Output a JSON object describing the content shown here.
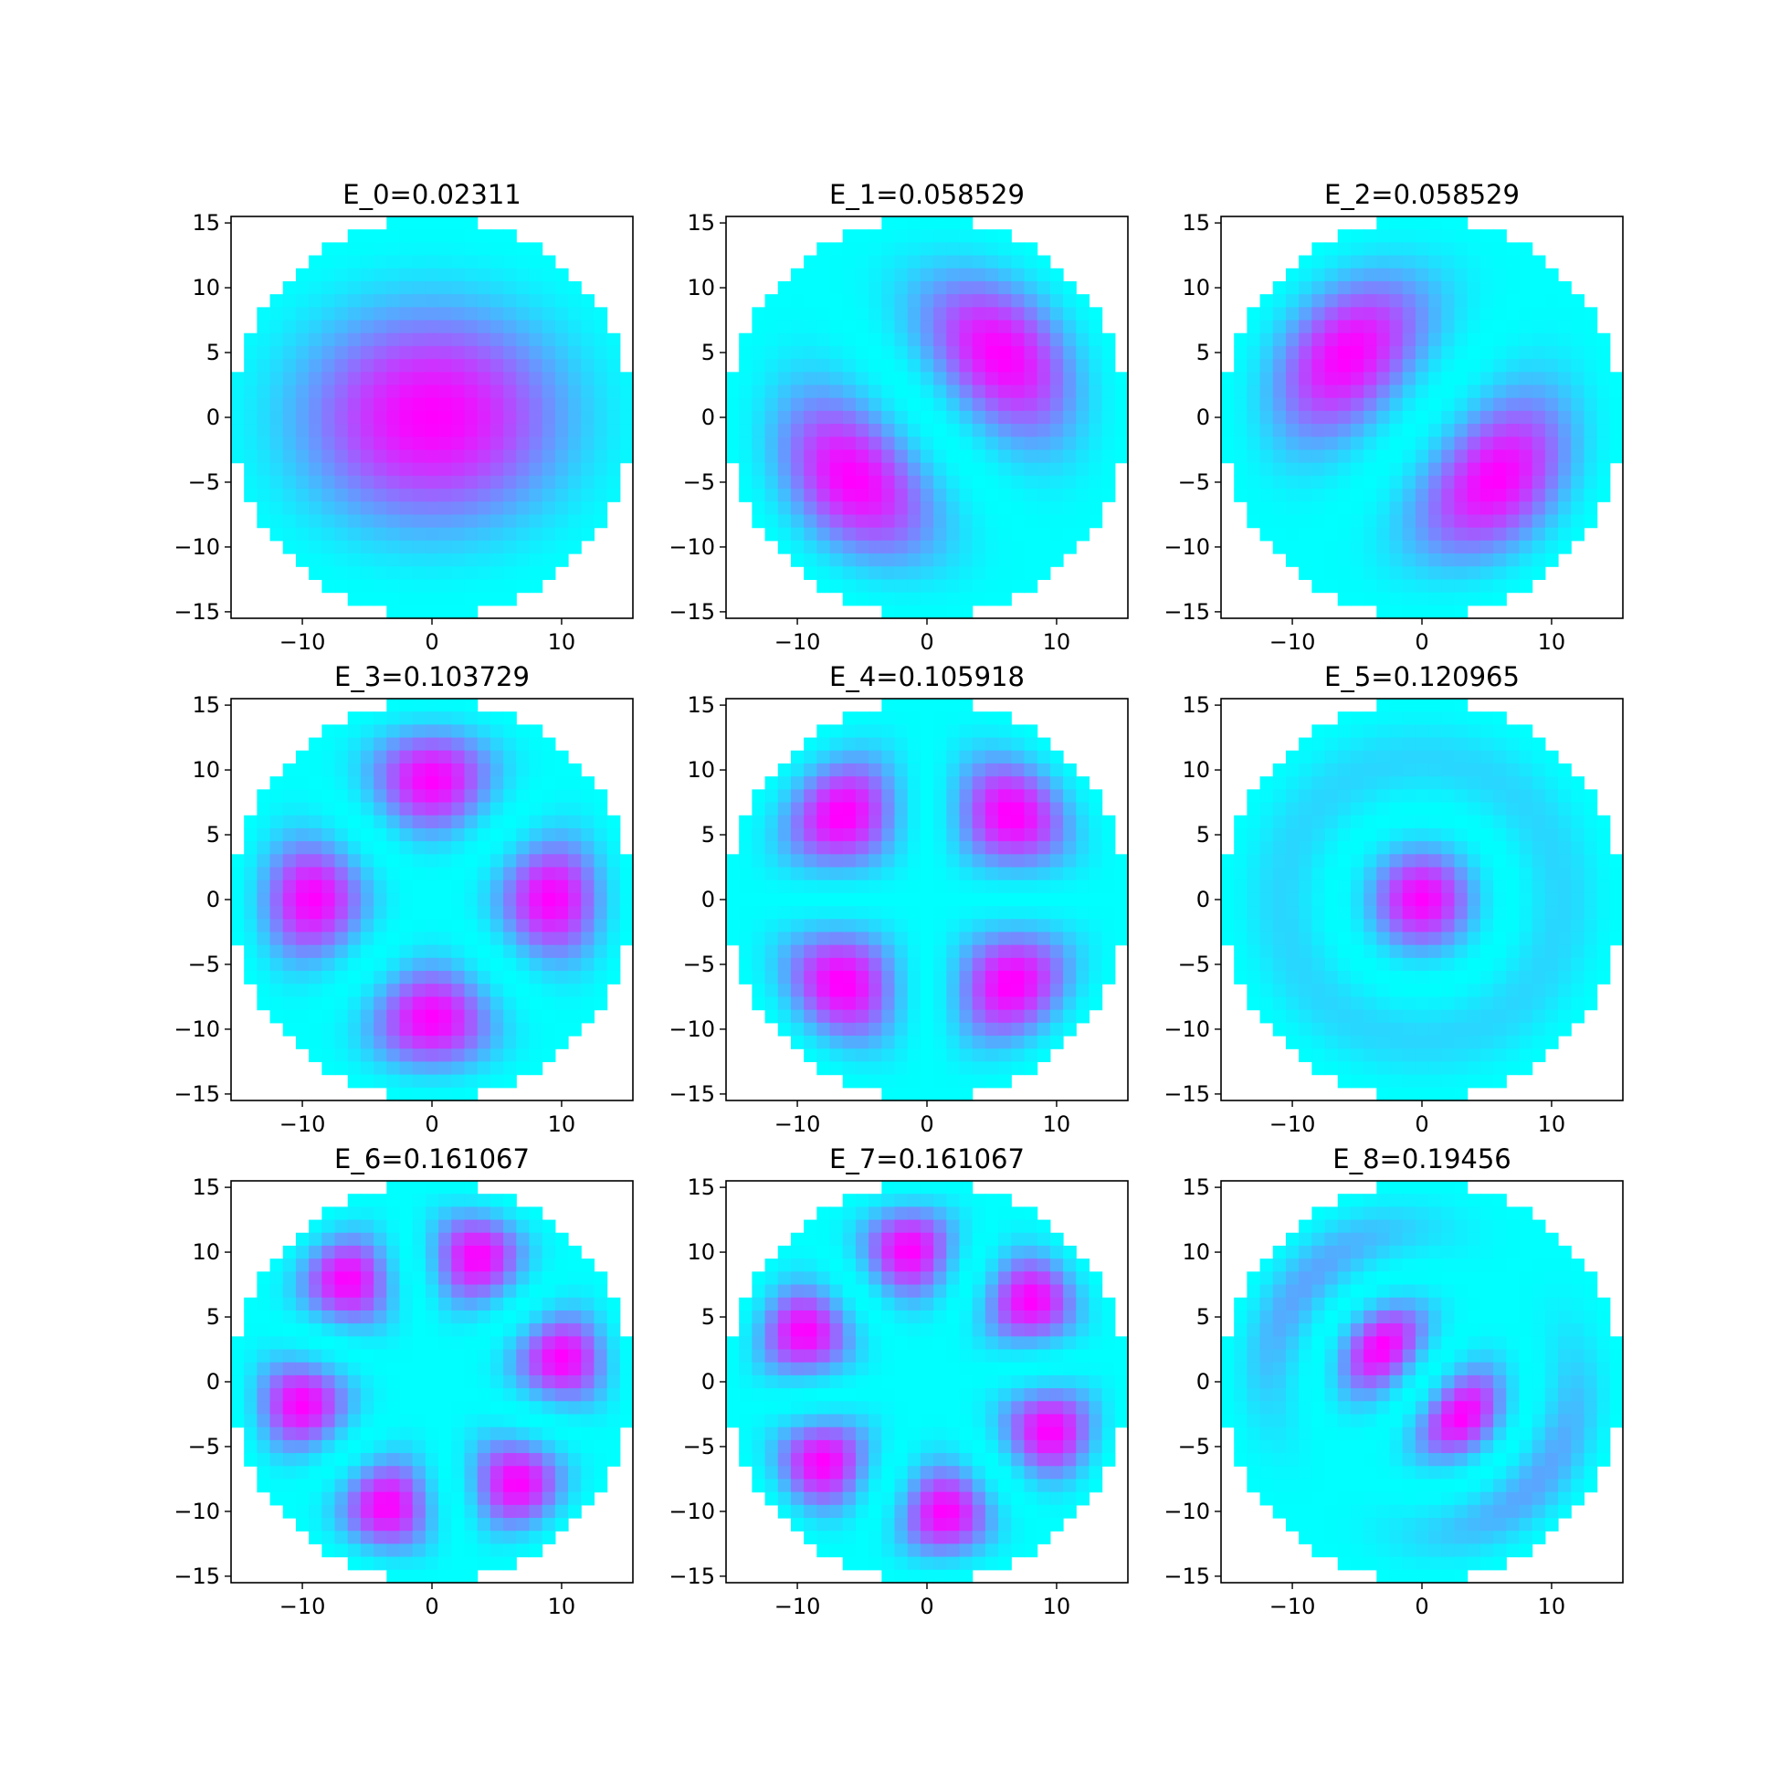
{
  "figure": {
    "background": "#ffffff",
    "colormap": "cool",
    "colormap_endpoints": [
      "#00ffff",
      "#ff00ff"
    ]
  },
  "chart_data": [
    {
      "type": "heatmap",
      "title": "E_0=0.02311",
      "grid": false,
      "xlim": [
        -15.5,
        15.5
      ],
      "ylim": [
        -15.5,
        15.5
      ],
      "xticks": [
        -10,
        0,
        10
      ],
      "xtick_labels": [
        "−10",
        "0",
        "10"
      ],
      "yticks": [
        -15,
        -10,
        -5,
        0,
        5,
        10,
        15
      ],
      "ytick_labels": [
        "−15",
        "−10",
        "−5",
        "0",
        "5",
        "10",
        "15"
      ],
      "domain": {
        "shape": "disk",
        "radius": 15.5
      },
      "intensity_model": "|psi|^2, normalized 0-1",
      "mode": {
        "radial_nodes": 0,
        "angular_number": 0,
        "orientation_deg": 0,
        "x_stretch": 1.15,
        "y_stretch": 0.95
      }
    },
    {
      "type": "heatmap",
      "title": "E_1=0.058529",
      "grid": false,
      "xlim": [
        -15.5,
        15.5
      ],
      "ylim": [
        -15.5,
        15.5
      ],
      "xticks": [
        -10,
        0,
        10
      ],
      "xtick_labels": [
        "−10",
        "0",
        "10"
      ],
      "yticks": [
        -15,
        -10,
        -5,
        0,
        5,
        10,
        15
      ],
      "ytick_labels": [
        "−15",
        "−10",
        "−5",
        "0",
        "5",
        "10",
        "15"
      ],
      "domain": {
        "shape": "disk",
        "radius": 15.5
      },
      "intensity_model": "|psi|^2, normalized 0-1",
      "mode": {
        "radial_nodes": 0,
        "angular_number": 1,
        "orientation_deg": 40,
        "x_stretch": 1.0,
        "y_stretch": 1.0
      }
    },
    {
      "type": "heatmap",
      "title": "E_2=0.058529",
      "grid": false,
      "xlim": [
        -15.5,
        15.5
      ],
      "ylim": [
        -15.5,
        15.5
      ],
      "xticks": [
        -10,
        0,
        10
      ],
      "xtick_labels": [
        "−10",
        "0",
        "10"
      ],
      "yticks": [
        -15,
        -10,
        -5,
        0,
        5,
        10,
        15
      ],
      "ytick_labels": [
        "−15",
        "−10",
        "−5",
        "0",
        "5",
        "10",
        "15"
      ],
      "domain": {
        "shape": "disk",
        "radius": 15.5
      },
      "intensity_model": "|psi|^2, normalized 0-1",
      "mode": {
        "radial_nodes": 0,
        "angular_number": 1,
        "orientation_deg": 140,
        "x_stretch": 1.0,
        "y_stretch": 1.0
      }
    },
    {
      "type": "heatmap",
      "title": "E_3=0.103729",
      "grid": false,
      "xlim": [
        -15.5,
        15.5
      ],
      "ylim": [
        -15.5,
        15.5
      ],
      "xticks": [
        -10,
        0,
        10
      ],
      "xtick_labels": [
        "−10",
        "0",
        "10"
      ],
      "yticks": [
        -15,
        -10,
        -5,
        0,
        5,
        10,
        15
      ],
      "ytick_labels": [
        "−15",
        "−10",
        "−5",
        "0",
        "5",
        "10",
        "15"
      ],
      "domain": {
        "shape": "disk",
        "radius": 15.5
      },
      "intensity_model": "|psi|^2, normalized 0-1",
      "mode": {
        "radial_nodes": 0,
        "angular_number": 2,
        "orientation_deg": 0,
        "x_stretch": 1.0,
        "y_stretch": 1.0
      }
    },
    {
      "type": "heatmap",
      "title": "E_4=0.105918",
      "grid": false,
      "xlim": [
        -15.5,
        15.5
      ],
      "ylim": [
        -15.5,
        15.5
      ],
      "xticks": [
        -10,
        0,
        10
      ],
      "xtick_labels": [
        "−10",
        "0",
        "10"
      ],
      "yticks": [
        -15,
        -10,
        -5,
        0,
        5,
        10,
        15
      ],
      "ytick_labels": [
        "−15",
        "−10",
        "−5",
        "0",
        "5",
        "10",
        "15"
      ],
      "domain": {
        "shape": "disk",
        "radius": 15.5
      },
      "intensity_model": "|psi|^2, normalized 0-1",
      "mode": {
        "radial_nodes": 0,
        "angular_number": 2,
        "orientation_deg": 45,
        "x_stretch": 1.0,
        "y_stretch": 1.0
      }
    },
    {
      "type": "heatmap",
      "title": "E_5=0.120965",
      "grid": false,
      "xlim": [
        -15.5,
        15.5
      ],
      "ylim": [
        -15.5,
        15.5
      ],
      "xticks": [
        -10,
        0,
        10
      ],
      "xtick_labels": [
        "−10",
        "0",
        "10"
      ],
      "yticks": [
        -15,
        -10,
        -5,
        0,
        5,
        10,
        15
      ],
      "ytick_labels": [
        "−15",
        "−10",
        "−5",
        "0",
        "5",
        "10",
        "15"
      ],
      "domain": {
        "shape": "disk",
        "radius": 15.5
      },
      "intensity_model": "|psi|^2, normalized 0-1",
      "mode": {
        "radial_nodes": 1,
        "angular_number": 0,
        "orientation_deg": 0,
        "x_stretch": 1.0,
        "y_stretch": 1.0
      }
    },
    {
      "type": "heatmap",
      "title": "E_6=0.161067",
      "grid": false,
      "xlim": [
        -15.5,
        15.5
      ],
      "ylim": [
        -15.5,
        15.5
      ],
      "xticks": [
        -10,
        0,
        10
      ],
      "xtick_labels": [
        "−10",
        "0",
        "10"
      ],
      "yticks": [
        -15,
        -10,
        -5,
        0,
        5,
        10,
        15
      ],
      "ytick_labels": [
        "−15",
        "−10",
        "−5",
        "0",
        "5",
        "10",
        "15"
      ],
      "domain": {
        "shape": "disk",
        "radius": 15.5
      },
      "intensity_model": "|psi|^2, normalized 0-1",
      "mode": {
        "radial_nodes": 0,
        "angular_number": 3,
        "orientation_deg": 10,
        "x_stretch": 1.0,
        "y_stretch": 1.0
      }
    },
    {
      "type": "heatmap",
      "title": "E_7=0.161067",
      "grid": false,
      "xlim": [
        -15.5,
        15.5
      ],
      "ylim": [
        -15.5,
        15.5
      ],
      "xticks": [
        -10,
        0,
        10
      ],
      "xtick_labels": [
        "−10",
        "0",
        "10"
      ],
      "yticks": [
        -15,
        -10,
        -5,
        0,
        5,
        10,
        15
      ],
      "ytick_labels": [
        "−15",
        "−10",
        "−5",
        "0",
        "5",
        "10",
        "15"
      ],
      "domain": {
        "shape": "disk",
        "radius": 15.5
      },
      "intensity_model": "|psi|^2, normalized 0-1",
      "mode": {
        "radial_nodes": 0,
        "angular_number": 3,
        "orientation_deg": 38,
        "x_stretch": 1.0,
        "y_stretch": 1.0
      }
    },
    {
      "type": "heatmap",
      "title": "E_8=0.19456",
      "grid": false,
      "xlim": [
        -15.5,
        15.5
      ],
      "ylim": [
        -15.5,
        15.5
      ],
      "xticks": [
        -10,
        0,
        10
      ],
      "xtick_labels": [
        "−10",
        "0",
        "10"
      ],
      "yticks": [
        -15,
        -10,
        -5,
        0,
        5,
        10,
        15
      ],
      "ytick_labels": [
        "−15",
        "−10",
        "−5",
        "0",
        "5",
        "10",
        "15"
      ],
      "domain": {
        "shape": "disk",
        "radius": 15.5
      },
      "intensity_model": "|psi|^2, normalized 0-1",
      "mode": {
        "radial_nodes": 1,
        "angular_number": 1,
        "orientation_deg": -40,
        "x_stretch": 1.0,
        "y_stretch": 1.0
      }
    }
  ]
}
